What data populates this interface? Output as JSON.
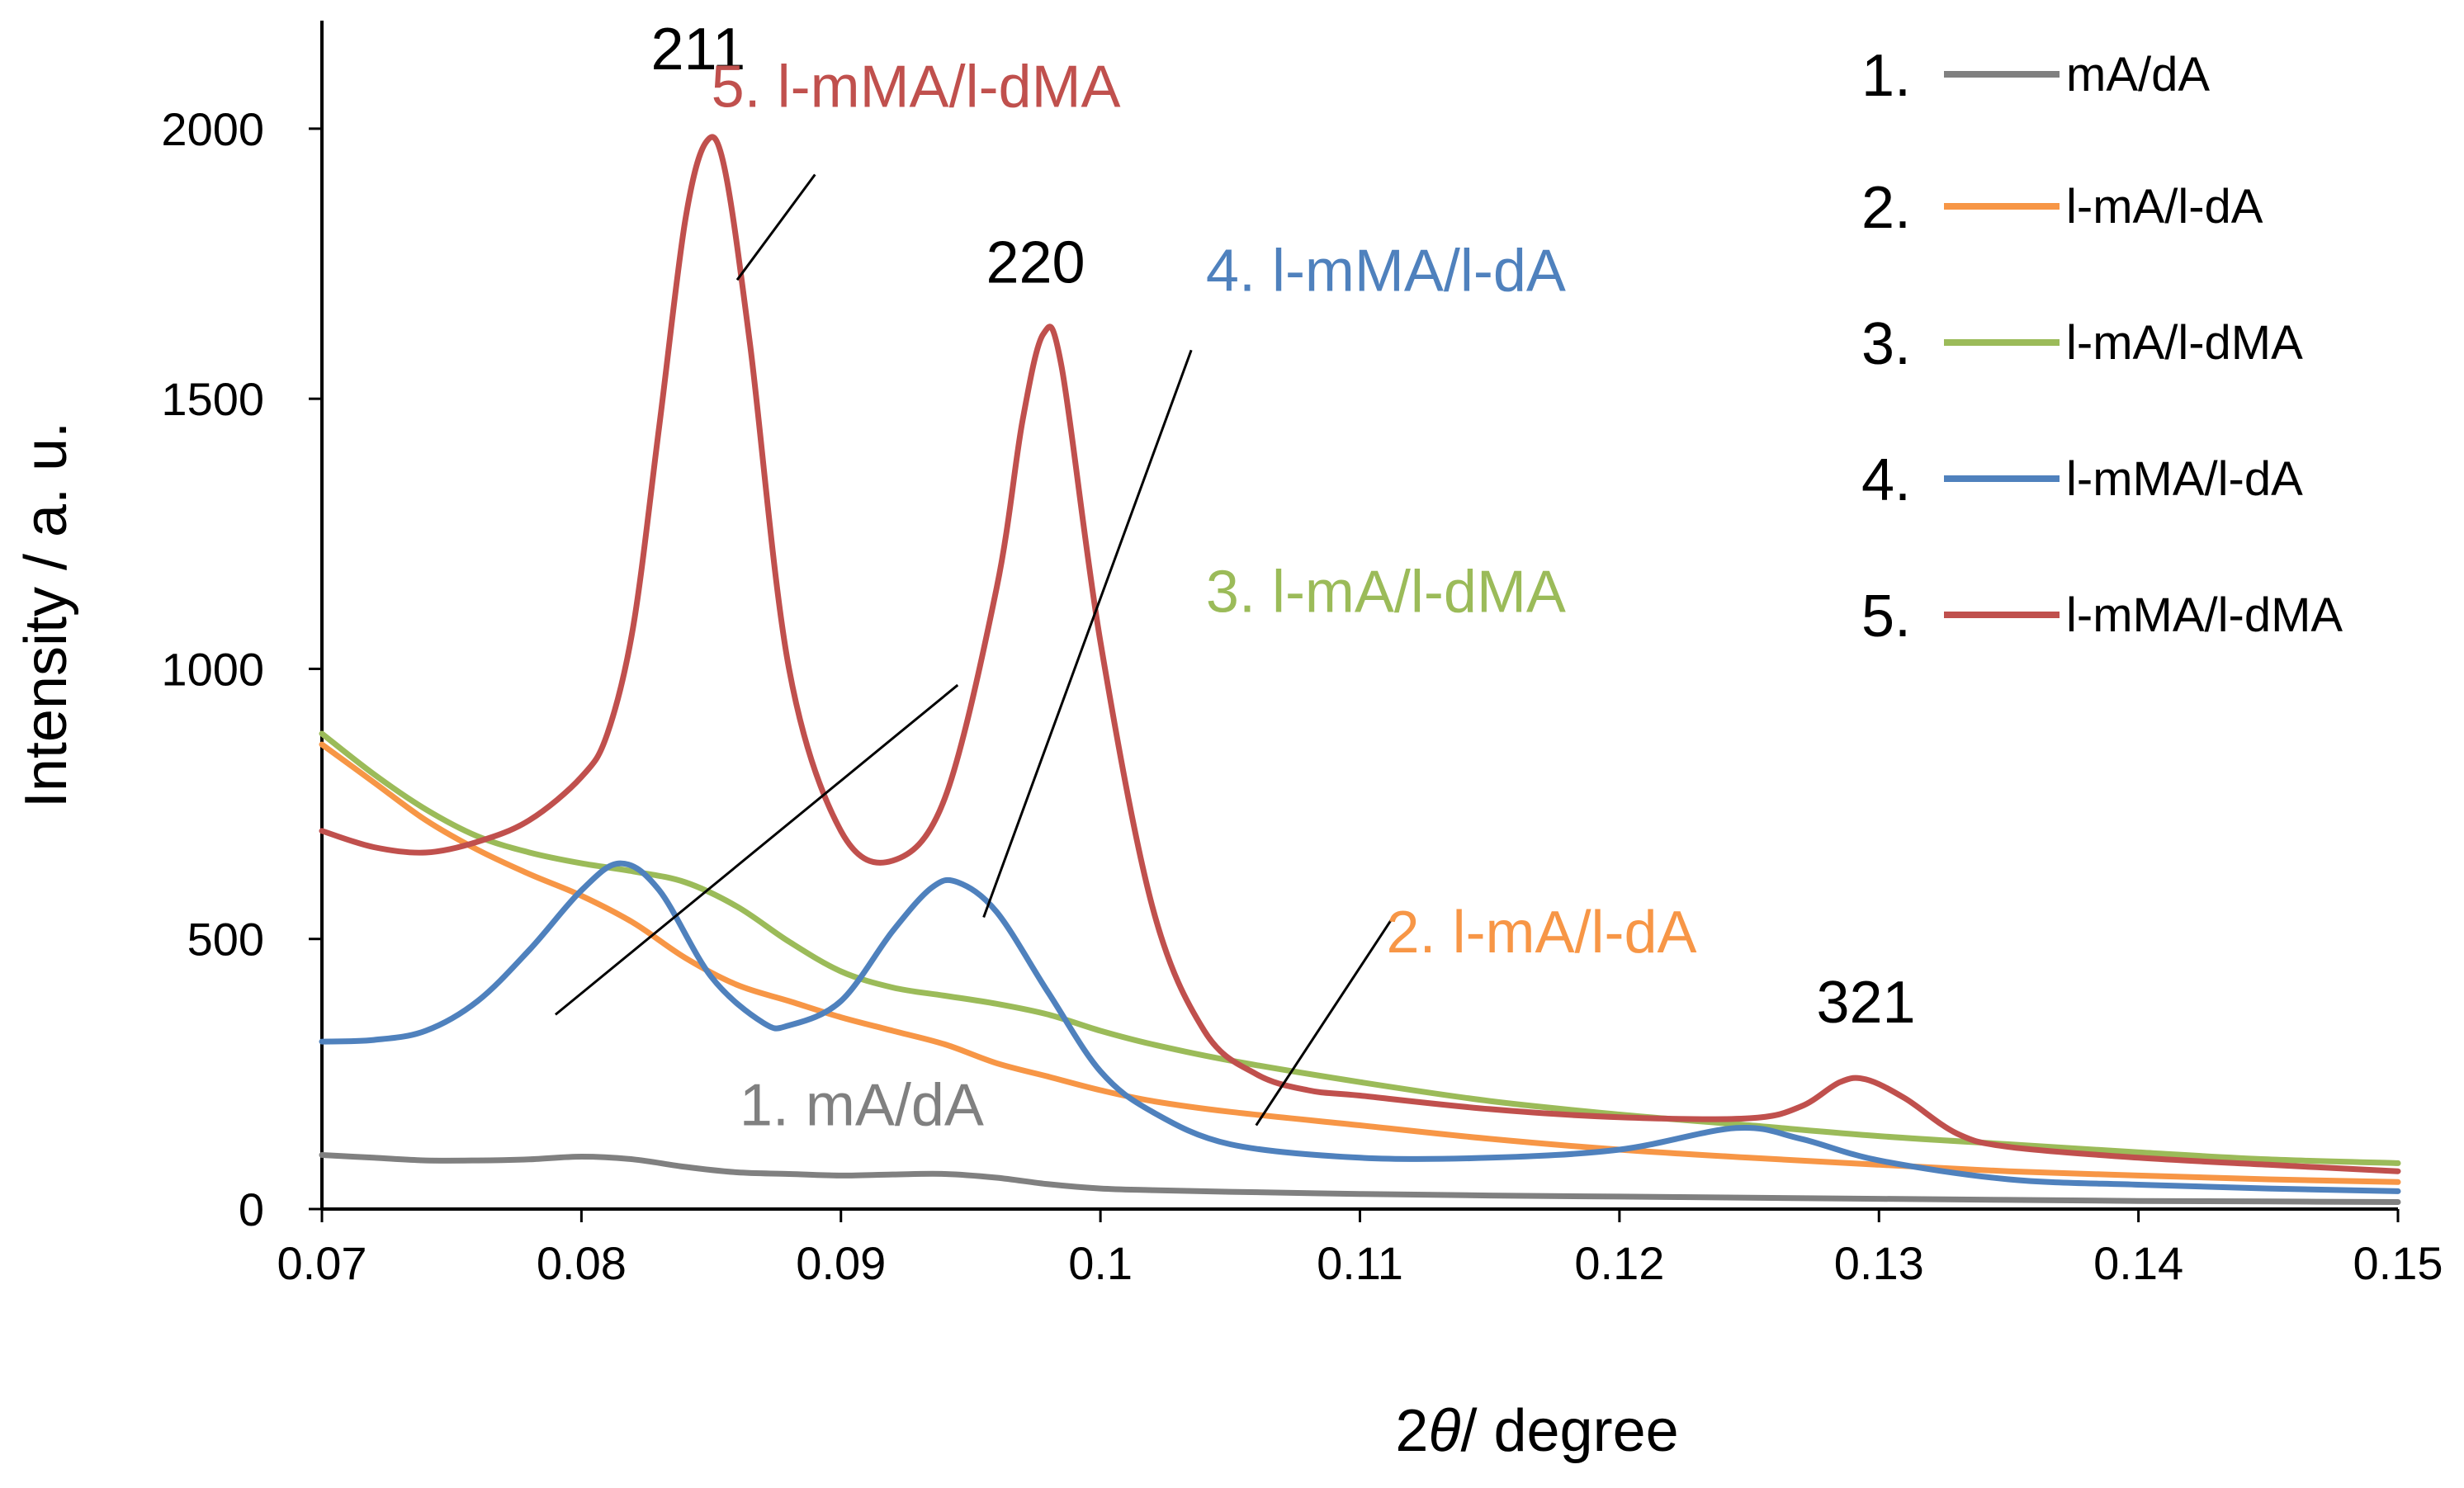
{
  "chart_data": {
    "type": "line",
    "title": "",
    "xlabel": "2θ / degree",
    "ylabel": "Intensity / a. u.",
    "xlim": [
      0.07,
      0.15
    ],
    "ylim": [
      0,
      2200
    ],
    "grid": false,
    "legend_position": "top-right",
    "x_ticks": [
      "0.07",
      "0.08",
      "0.09",
      "0.1",
      "0.11",
      "0.12",
      "0.13",
      "0.14",
      "0.15"
    ],
    "x_tick_values": [
      0.07,
      0.08,
      0.09,
      0.1,
      0.11,
      0.12,
      0.13,
      0.14,
      0.15
    ],
    "y_ticks": [
      "0",
      "500",
      "1000",
      "1500",
      "2000"
    ],
    "y_tick_values": [
      0,
      500,
      1000,
      1500,
      2000
    ],
    "peak_labels": [
      {
        "text": "211",
        "x": 0.0845,
        "y": 2110
      },
      {
        "text": "220",
        "x": 0.0975,
        "y": 1715
      },
      {
        "text": "321",
        "x": 0.1295,
        "y": 345
      }
    ],
    "series": [
      {
        "name": "mA/dA",
        "number": "1.",
        "color": "#808080",
        "annotation": {
          "text": "1. mA/dA",
          "x": 0.0908,
          "y": 155,
          "anchor": "middle"
        },
        "x": [
          0.07,
          0.072,
          0.074,
          0.076,
          0.078,
          0.08,
          0.082,
          0.084,
          0.086,
          0.088,
          0.09,
          0.092,
          0.094,
          0.096,
          0.098,
          0.1,
          0.102,
          0.105,
          0.11,
          0.115,
          0.12,
          0.125,
          0.13,
          0.135,
          0.14,
          0.145,
          0.15
        ],
        "values": [
          100,
          95,
          90,
          90,
          92,
          97,
          92,
          78,
          68,
          65,
          62,
          64,
          65,
          58,
          46,
          38,
          35,
          32,
          28,
          25,
          23,
          21,
          19,
          17,
          15,
          14,
          13
        ]
      },
      {
        "name": "l-mA/l-dA",
        "number": "2.",
        "color": "#F79646",
        "annotation": {
          "text": "2. l-mA/l-dA",
          "x": 0.117,
          "y": 475,
          "anchor": "middle",
          "line": [
            0.1112,
            535,
            0.106,
            155
          ]
        },
        "x": [
          0.07,
          0.072,
          0.074,
          0.076,
          0.078,
          0.08,
          0.082,
          0.084,
          0.086,
          0.088,
          0.09,
          0.092,
          0.094,
          0.096,
          0.098,
          0.1,
          0.102,
          0.105,
          0.11,
          0.115,
          0.12,
          0.125,
          0.13,
          0.135,
          0.14,
          0.145,
          0.15
        ],
        "values": [
          860,
          790,
          720,
          665,
          620,
          580,
          530,
          465,
          415,
          385,
          355,
          330,
          305,
          270,
          245,
          220,
          200,
          180,
          155,
          130,
          110,
          95,
          82,
          70,
          62,
          55,
          50
        ]
      },
      {
        "name": "l-mA/l-dMA",
        "number": "3.",
        "color": "#9BBB59",
        "annotation": {
          "text": "3. l-mA/l-dMA",
          "x": 0.111,
          "y": 1105,
          "anchor": "middle",
          "line": [
            0.0945,
            970,
            0.079,
            360
          ]
        },
        "x": [
          0.07,
          0.072,
          0.074,
          0.076,
          0.078,
          0.08,
          0.082,
          0.084,
          0.086,
          0.088,
          0.09,
          0.092,
          0.094,
          0.096,
          0.098,
          0.1,
          0.102,
          0.105,
          0.11,
          0.115,
          0.12,
          0.125,
          0.13,
          0.135,
          0.14,
          0.145,
          0.15
        ],
        "values": [
          880,
          805,
          740,
          690,
          660,
          640,
          625,
          605,
          560,
          495,
          440,
          410,
          395,
          380,
          360,
          330,
          305,
          275,
          235,
          200,
          175,
          155,
          135,
          120,
          105,
          92,
          85
        ]
      },
      {
        "name": "l-mMA/l-dA",
        "number": "4.",
        "color": "#4F81BD",
        "annotation": {
          "text": "4. l-mMA/l-dA",
          "x": 0.111,
          "y": 1700,
          "anchor": "middle",
          "line": [
            0.1035,
            1590,
            0.0955,
            540
          ]
        },
        "x": [
          0.07,
          0.072,
          0.074,
          0.076,
          0.078,
          0.08,
          0.0815,
          0.083,
          0.085,
          0.087,
          0.088,
          0.09,
          0.092,
          0.0935,
          0.0945,
          0.096,
          0.098,
          0.1,
          0.102,
          0.105,
          0.11,
          0.115,
          0.12,
          0.1245,
          0.127,
          0.13,
          0.135,
          0.14,
          0.145,
          0.15
        ],
        "values": [
          310,
          313,
          330,
          385,
          480,
          590,
          640,
          590,
          430,
          345,
          340,
          385,
          515,
          595,
          605,
          550,
          400,
          255,
          180,
          120,
          95,
          95,
          110,
          150,
          130,
          90,
          55,
          45,
          38,
          33
        ]
      },
      {
        "name": "l-mMA/l-dMA",
        "number": "5.",
        "color": "#C0504D",
        "annotation": {
          "text": "5. l-mMA/l-dMA",
          "x": 0.085,
          "y": 2040,
          "anchor": "start",
          "line": [
            0.089,
            1915,
            0.086,
            1720
          ]
        },
        "x": [
          0.07,
          0.072,
          0.074,
          0.076,
          0.078,
          0.08,
          0.081,
          0.082,
          0.083,
          0.084,
          0.0848,
          0.0855,
          0.0865,
          0.088,
          0.09,
          0.092,
          0.094,
          0.096,
          0.097,
          0.0978,
          0.0985,
          0.1,
          0.102,
          0.104,
          0.106,
          0.108,
          0.11,
          0.115,
          0.12,
          0.125,
          0.127,
          0.1285,
          0.1295,
          0.131,
          0.133,
          0.135,
          0.14,
          0.145,
          0.15
        ],
        "values": [
          700,
          670,
          660,
          680,
          720,
          800,
          880,
          1080,
          1450,
          1830,
          1975,
          1930,
          1600,
          1000,
          700,
          645,
          760,
          1150,
          1460,
          1620,
          1560,
          1050,
          560,
          330,
          250,
          220,
          210,
          185,
          170,
          168,
          190,
          235,
          240,
          205,
          140,
          115,
          95,
          82,
          70
        ]
      }
    ]
  }
}
